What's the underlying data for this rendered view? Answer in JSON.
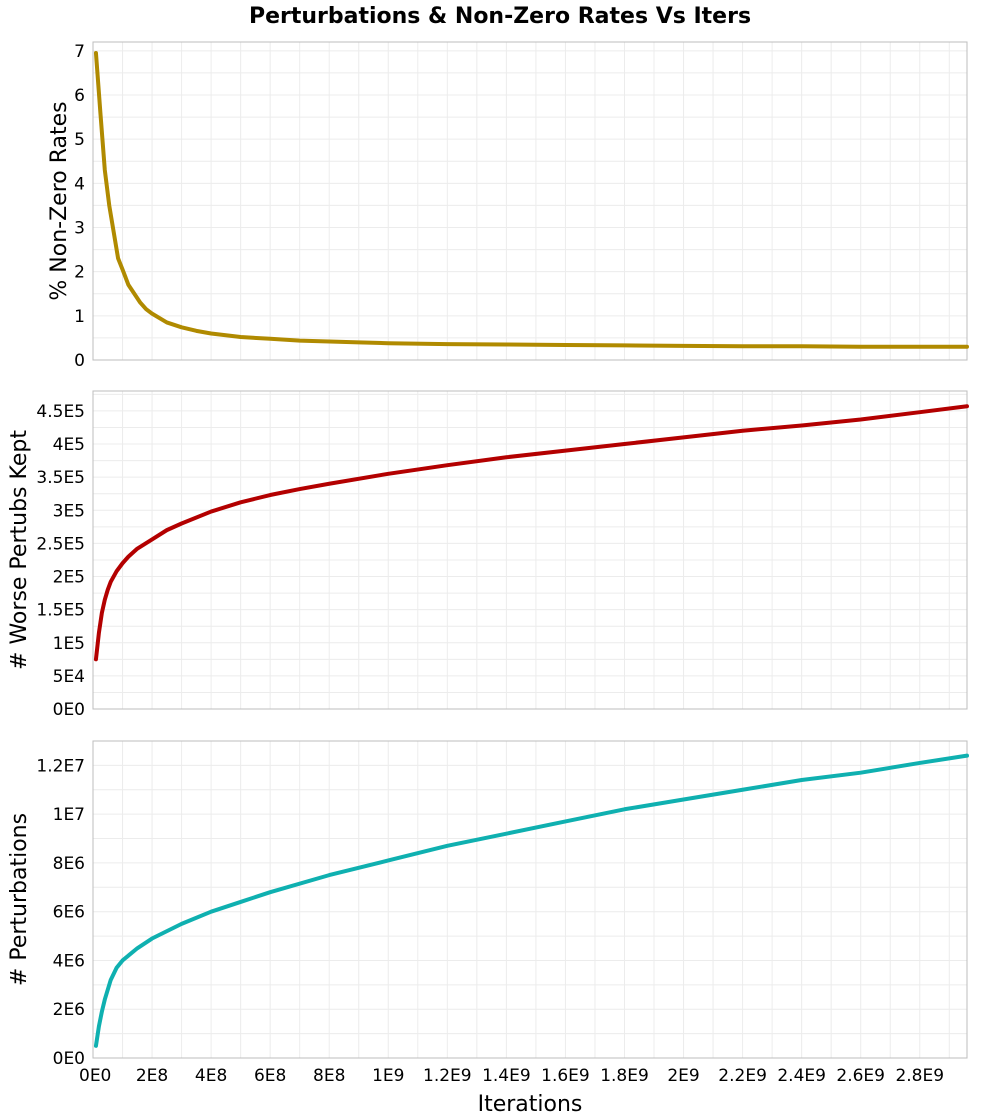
{
  "figure": {
    "title": "Perturbations & Non-Zero Rates Vs Iters"
  },
  "chart_data": [
    {
      "type": "line",
      "title": "Perturbations & Non-Zero Rates Vs Iters",
      "xlabel": "",
      "ylabel": "% Non-Zero Rates",
      "xlim": [
        0,
        2960000000.0
      ],
      "ylim": [
        0,
        7.2
      ],
      "grid": true,
      "color": "#b08a00",
      "x_ticks": [
        0,
        200000000.0,
        400000000.0,
        600000000.0,
        800000000.0,
        1000000000.0,
        1200000000.0,
        1400000000.0,
        1600000000.0,
        1800000000.0,
        2000000000.0,
        2200000000.0,
        2400000000.0,
        2600000000.0,
        2800000000.0
      ],
      "x_tick_labels": [],
      "y_ticks": [
        0,
        1,
        2,
        3,
        4,
        5,
        6,
        7
      ],
      "y_tick_labels": [
        "0",
        "1",
        "2",
        "3",
        "4",
        "5",
        "6",
        "7"
      ],
      "series": [
        {
          "name": "",
          "x": [
            10000000.0,
            25000000.0,
            40000000.0,
            55000000.0,
            70000000.0,
            85000000.0,
            100000000.0,
            120000000.0,
            140000000.0,
            160000000.0,
            180000000.0,
            200000000.0,
            250000000.0,
            300000000.0,
            350000000.0,
            400000000.0,
            500000000.0,
            600000000.0,
            700000000.0,
            800000000.0,
            900000000.0,
            1000000000.0,
            1200000000.0,
            1400000000.0,
            1600000000.0,
            1800000000.0,
            2000000000.0,
            2200000000.0,
            2400000000.0,
            2600000000.0,
            2800000000.0,
            2960000000.0
          ],
          "y": [
            6.95,
            5.6,
            4.3,
            3.5,
            2.9,
            2.3,
            2.05,
            1.7,
            1.5,
            1.3,
            1.15,
            1.05,
            0.85,
            0.74,
            0.66,
            0.6,
            0.52,
            0.48,
            0.44,
            0.42,
            0.4,
            0.38,
            0.36,
            0.35,
            0.34,
            0.33,
            0.32,
            0.31,
            0.31,
            0.3,
            0.3,
            0.3
          ]
        }
      ]
    },
    {
      "type": "line",
      "xlabel": "",
      "ylabel": "# Worse Pertubs Kept",
      "xlim": [
        0,
        2960000000.0
      ],
      "ylim": [
        0,
        480000.0
      ],
      "grid": true,
      "color": "#b30000",
      "x_ticks": [
        0,
        200000000.0,
        400000000.0,
        600000000.0,
        800000000.0,
        1000000000.0,
        1200000000.0,
        1400000000.0,
        1600000000.0,
        1800000000.0,
        2000000000.0,
        2200000000.0,
        2400000000.0,
        2600000000.0,
        2800000000.0
      ],
      "x_tick_labels": [],
      "y_ticks": [
        0,
        50000.0,
        100000.0,
        150000.0,
        200000.0,
        250000.0,
        300000.0,
        350000.0,
        400000.0,
        450000.0
      ],
      "y_tick_labels": [
        "0E0",
        "5E4",
        "1E5",
        "1.5E5",
        "2E5",
        "2.5E5",
        "3E5",
        "3.5E5",
        "4E5",
        "4.5E5"
      ],
      "series": [
        {
          "name": "",
          "x": [
            10000000.0,
            20000000.0,
            30000000.0,
            40000000.0,
            50000000.0,
            60000000.0,
            80000000.0,
            100000000.0,
            120000000.0,
            150000000.0,
            200000000.0,
            250000000.0,
            300000000.0,
            400000000.0,
            500000000.0,
            600000000.0,
            700000000.0,
            800000000.0,
            1000000000.0,
            1200000000.0,
            1400000000.0,
            1600000000.0,
            1800000000.0,
            2000000000.0,
            2200000000.0,
            2400000000.0,
            2600000000.0,
            2800000000.0,
            2960000000.0
          ],
          "y": [
            75000.0,
            115000.0,
            145000.0,
            165000.0,
            180000.0,
            192000.0,
            208000.0,
            220000.0,
            230000.0,
            242000.0,
            256000.0,
            270000.0,
            280000.0,
            298000.0,
            312000.0,
            323000.0,
            332000.0,
            340000.0,
            355000.0,
            368000.0,
            380000.0,
            390000.0,
            400000.0,
            410000.0,
            420000.0,
            428000.0,
            437000.0,
            448000.0,
            457000.0
          ]
        }
      ]
    },
    {
      "type": "line",
      "xlabel": "Iterations",
      "ylabel": "# Perturbations",
      "xlim": [
        0,
        2960000000.0
      ],
      "ylim": [
        0,
        13000000.0
      ],
      "grid": true,
      "color": "#0fb0b0",
      "x_ticks": [
        0,
        200000000.0,
        400000000.0,
        600000000.0,
        800000000.0,
        1000000000.0,
        1200000000.0,
        1400000000.0,
        1600000000.0,
        1800000000.0,
        2000000000.0,
        2200000000.0,
        2400000000.0,
        2600000000.0,
        2800000000.0
      ],
      "x_tick_labels": [
        "0E0",
        "2E8",
        "4E8",
        "6E8",
        "8E8",
        "1E9",
        "1.2E9",
        "1.4E9",
        "1.6E9",
        "1.8E9",
        "2E9",
        "2.2E9",
        "2.4E9",
        "2.6E9",
        "2.8E9"
      ],
      "y_ticks": [
        0,
        2000000.0,
        4000000.0,
        6000000.0,
        8000000.0,
        10000000.0,
        12000000.0
      ],
      "y_tick_labels": [
        "0E0",
        "2E6",
        "4E6",
        "6E6",
        "8E6",
        "1E7",
        "1.2E7"
      ],
      "series": [
        {
          "name": "",
          "x": [
            10000000.0,
            20000000.0,
            30000000.0,
            40000000.0,
            60000000.0,
            80000000.0,
            100000000.0,
            150000000.0,
            200000000.0,
            300000000.0,
            400000000.0,
            500000000.0,
            600000000.0,
            800000000.0,
            1000000000.0,
            1200000000.0,
            1400000000.0,
            1600000000.0,
            1800000000.0,
            2000000000.0,
            2200000000.0,
            2400000000.0,
            2600000000.0,
            2800000000.0,
            2960000000.0
          ],
          "y": [
            500000.0,
            1300000.0,
            1900000.0,
            2400000.0,
            3200000.0,
            3700000.0,
            4000000.0,
            4500000.0,
            4900000.0,
            5500000.0,
            6000000.0,
            6400000.0,
            6800000.0,
            7500000.0,
            8100000.0,
            8700000.0,
            9200000.0,
            9700000.0,
            10200000.0,
            10600000.0,
            11000000.0,
            11400000.0,
            11700000.0,
            12100000.0,
            12400000.0
          ]
        }
      ]
    }
  ]
}
